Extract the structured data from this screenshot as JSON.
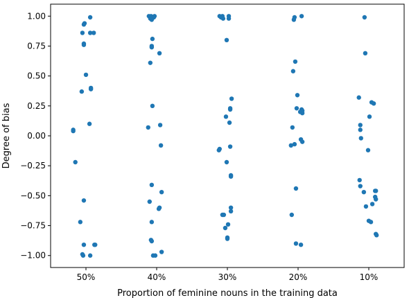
{
  "chart_data": {
    "type": "scatter",
    "title": "",
    "xlabel": "Proportion of feminine nouns in the training data",
    "ylabel": "Degree of bias",
    "categories": [
      "50%",
      "40%",
      "30%",
      "20%",
      "10%"
    ],
    "y_ticks": [
      "1.00",
      "0.75",
      "0.50",
      "0.25",
      "0.00",
      "−0.25",
      "−0.50",
      "−0.75",
      "−1.00"
    ],
    "y_tick_values": [
      1.0,
      0.75,
      0.5,
      0.25,
      0.0,
      -0.25,
      -0.5,
      -0.75,
      -1.0
    ],
    "ylim": [
      -1.1,
      1.1
    ],
    "grid": false,
    "legend": "none",
    "marker_color": "#1f77b4",
    "points": [
      {
        "category": "50%",
        "jitter": 0.06,
        "y": 0.99
      },
      {
        "category": "50%",
        "jitter": -0.02,
        "y": 0.94
      },
      {
        "category": "50%",
        "jitter": -0.03,
        "y": 0.93
      },
      {
        "category": "50%",
        "jitter": -0.05,
        "y": 0.86
      },
      {
        "category": "50%",
        "jitter": 0.06,
        "y": 0.86
      },
      {
        "category": "50%",
        "jitter": 0.11,
        "y": 0.86
      },
      {
        "category": "50%",
        "jitter": -0.03,
        "y": 0.77
      },
      {
        "category": "50%",
        "jitter": -0.03,
        "y": 0.76
      },
      {
        "category": "50%",
        "jitter": 0.0,
        "y": 0.51
      },
      {
        "category": "50%",
        "jitter": 0.07,
        "y": 0.4
      },
      {
        "category": "50%",
        "jitter": 0.07,
        "y": 0.39
      },
      {
        "category": "50%",
        "jitter": -0.06,
        "y": 0.37
      },
      {
        "category": "50%",
        "jitter": 0.05,
        "y": 0.1
      },
      {
        "category": "50%",
        "jitter": -0.18,
        "y": 0.05
      },
      {
        "category": "50%",
        "jitter": -0.18,
        "y": 0.04
      },
      {
        "category": "50%",
        "jitter": -0.15,
        "y": -0.22
      },
      {
        "category": "50%",
        "jitter": -0.03,
        "y": -0.54
      },
      {
        "category": "50%",
        "jitter": -0.08,
        "y": -0.72
      },
      {
        "category": "50%",
        "jitter": -0.03,
        "y": -0.91
      },
      {
        "category": "50%",
        "jitter": 0.12,
        "y": -0.91
      },
      {
        "category": "50%",
        "jitter": 0.13,
        "y": -0.91
      },
      {
        "category": "50%",
        "jitter": -0.05,
        "y": -0.99
      },
      {
        "category": "50%",
        "jitter": -0.04,
        "y": -1.0
      },
      {
        "category": "50%",
        "jitter": 0.06,
        "y": -1.0
      },
      {
        "category": "40%",
        "jitter": -0.11,
        "y": 1.0
      },
      {
        "category": "40%",
        "jitter": -0.08,
        "y": 1.0
      },
      {
        "category": "40%",
        "jitter": -0.03,
        "y": 1.0
      },
      {
        "category": "40%",
        "jitter": -0.04,
        "y": 0.99
      },
      {
        "category": "40%",
        "jitter": -0.09,
        "y": 0.98
      },
      {
        "category": "40%",
        "jitter": -0.07,
        "y": 0.97
      },
      {
        "category": "40%",
        "jitter": -0.06,
        "y": 0.81
      },
      {
        "category": "40%",
        "jitter": -0.07,
        "y": 0.75
      },
      {
        "category": "40%",
        "jitter": -0.07,
        "y": 0.74
      },
      {
        "category": "40%",
        "jitter": 0.04,
        "y": 0.69
      },
      {
        "category": "40%",
        "jitter": -0.09,
        "y": 0.61
      },
      {
        "category": "40%",
        "jitter": -0.06,
        "y": 0.25
      },
      {
        "category": "40%",
        "jitter": 0.05,
        "y": 0.09
      },
      {
        "category": "40%",
        "jitter": -0.12,
        "y": 0.07
      },
      {
        "category": "40%",
        "jitter": 0.06,
        "y": -0.08
      },
      {
        "category": "40%",
        "jitter": -0.07,
        "y": -0.41
      },
      {
        "category": "40%",
        "jitter": 0.07,
        "y": -0.47
      },
      {
        "category": "40%",
        "jitter": -0.1,
        "y": -0.55
      },
      {
        "category": "40%",
        "jitter": 0.04,
        "y": -0.6
      },
      {
        "category": "40%",
        "jitter": 0.03,
        "y": -0.61
      },
      {
        "category": "40%",
        "jitter": -0.07,
        "y": -0.72
      },
      {
        "category": "40%",
        "jitter": -0.08,
        "y": -0.87
      },
      {
        "category": "40%",
        "jitter": -0.07,
        "y": -0.88
      },
      {
        "category": "40%",
        "jitter": 0.07,
        "y": -0.97
      },
      {
        "category": "40%",
        "jitter": -0.02,
        "y": -1.0
      },
      {
        "category": "40%",
        "jitter": -0.05,
        "y": -1.0
      },
      {
        "category": "30%",
        "jitter": -0.11,
        "y": 1.0
      },
      {
        "category": "30%",
        "jitter": -0.07,
        "y": 1.0
      },
      {
        "category": "30%",
        "jitter": 0.02,
        "y": 1.0
      },
      {
        "category": "30%",
        "jitter": -0.09,
        "y": 0.99
      },
      {
        "category": "30%",
        "jitter": -0.06,
        "y": 0.98
      },
      {
        "category": "30%",
        "jitter": 0.02,
        "y": 0.98
      },
      {
        "category": "30%",
        "jitter": -0.01,
        "y": 0.8
      },
      {
        "category": "30%",
        "jitter": 0.06,
        "y": 0.31
      },
      {
        "category": "30%",
        "jitter": 0.04,
        "y": 0.23
      },
      {
        "category": "30%",
        "jitter": 0.04,
        "y": 0.22
      },
      {
        "category": "30%",
        "jitter": -0.02,
        "y": 0.16
      },
      {
        "category": "30%",
        "jitter": 0.03,
        "y": 0.11
      },
      {
        "category": "30%",
        "jitter": 0.04,
        "y": -0.09
      },
      {
        "category": "30%",
        "jitter": -0.12,
        "y": -0.12
      },
      {
        "category": "30%",
        "jitter": -0.11,
        "y": -0.11
      },
      {
        "category": "30%",
        "jitter": -0.01,
        "y": -0.22
      },
      {
        "category": "30%",
        "jitter": 0.05,
        "y": -0.33
      },
      {
        "category": "30%",
        "jitter": 0.05,
        "y": -0.34
      },
      {
        "category": "30%",
        "jitter": 0.05,
        "y": -0.6
      },
      {
        "category": "30%",
        "jitter": 0.05,
        "y": -0.63
      },
      {
        "category": "30%",
        "jitter": -0.07,
        "y": -0.66
      },
      {
        "category": "30%",
        "jitter": -0.05,
        "y": -0.66
      },
      {
        "category": "30%",
        "jitter": 0.01,
        "y": -0.74
      },
      {
        "category": "30%",
        "jitter": -0.03,
        "y": -0.77
      },
      {
        "category": "30%",
        "jitter": 0.0,
        "y": -0.85
      },
      {
        "category": "30%",
        "jitter": 0.0,
        "y": -0.86
      },
      {
        "category": "20%",
        "jitter": -0.05,
        "y": 0.99
      },
      {
        "category": "20%",
        "jitter": 0.05,
        "y": 1.0
      },
      {
        "category": "20%",
        "jitter": -0.06,
        "y": 0.97
      },
      {
        "category": "20%",
        "jitter": -0.04,
        "y": 0.62
      },
      {
        "category": "20%",
        "jitter": -0.07,
        "y": 0.54
      },
      {
        "category": "20%",
        "jitter": -0.01,
        "y": 0.34
      },
      {
        "category": "20%",
        "jitter": -0.02,
        "y": 0.23
      },
      {
        "category": "20%",
        "jitter": 0.05,
        "y": 0.22
      },
      {
        "category": "20%",
        "jitter": 0.03,
        "y": 0.2
      },
      {
        "category": "20%",
        "jitter": 0.06,
        "y": 0.21
      },
      {
        "category": "20%",
        "jitter": 0.06,
        "y": 0.19
      },
      {
        "category": "20%",
        "jitter": -0.08,
        "y": 0.07
      },
      {
        "category": "20%",
        "jitter": 0.04,
        "y": -0.03
      },
      {
        "category": "20%",
        "jitter": 0.06,
        "y": -0.05
      },
      {
        "category": "20%",
        "jitter": -0.05,
        "y": -0.07
      },
      {
        "category": "20%",
        "jitter": -0.1,
        "y": -0.08
      },
      {
        "category": "20%",
        "jitter": -0.03,
        "y": -0.44
      },
      {
        "category": "20%",
        "jitter": -0.09,
        "y": -0.66
      },
      {
        "category": "20%",
        "jitter": -0.03,
        "y": -0.9
      },
      {
        "category": "20%",
        "jitter": 0.04,
        "y": -0.91
      },
      {
        "category": "10%",
        "jitter": -0.06,
        "y": 0.99
      },
      {
        "category": "10%",
        "jitter": -0.05,
        "y": 0.69
      },
      {
        "category": "10%",
        "jitter": -0.14,
        "y": 0.32
      },
      {
        "category": "10%",
        "jitter": 0.04,
        "y": 0.28
      },
      {
        "category": "10%",
        "jitter": 0.07,
        "y": 0.27
      },
      {
        "category": "10%",
        "jitter": 0.01,
        "y": 0.16
      },
      {
        "category": "10%",
        "jitter": -0.12,
        "y": 0.09
      },
      {
        "category": "10%",
        "jitter": -0.12,
        "y": 0.05
      },
      {
        "category": "10%",
        "jitter": -0.11,
        "y": -0.02
      },
      {
        "category": "10%",
        "jitter": -0.01,
        "y": -0.12
      },
      {
        "category": "10%",
        "jitter": -0.13,
        "y": -0.37
      },
      {
        "category": "10%",
        "jitter": -0.12,
        "y": -0.42
      },
      {
        "category": "10%",
        "jitter": -0.07,
        "y": -0.47
      },
      {
        "category": "10%",
        "jitter": 0.09,
        "y": -0.46
      },
      {
        "category": "10%",
        "jitter": 0.1,
        "y": -0.46
      },
      {
        "category": "10%",
        "jitter": 0.09,
        "y": -0.51
      },
      {
        "category": "10%",
        "jitter": 0.1,
        "y": -0.53
      },
      {
        "category": "10%",
        "jitter": 0.05,
        "y": -0.57
      },
      {
        "category": "10%",
        "jitter": -0.04,
        "y": -0.59
      },
      {
        "category": "10%",
        "jitter": 0.0,
        "y": -0.71
      },
      {
        "category": "10%",
        "jitter": 0.03,
        "y": -0.72
      },
      {
        "category": "10%",
        "jitter": 0.1,
        "y": -0.82
      },
      {
        "category": "10%",
        "jitter": 0.11,
        "y": -0.83
      }
    ]
  }
}
